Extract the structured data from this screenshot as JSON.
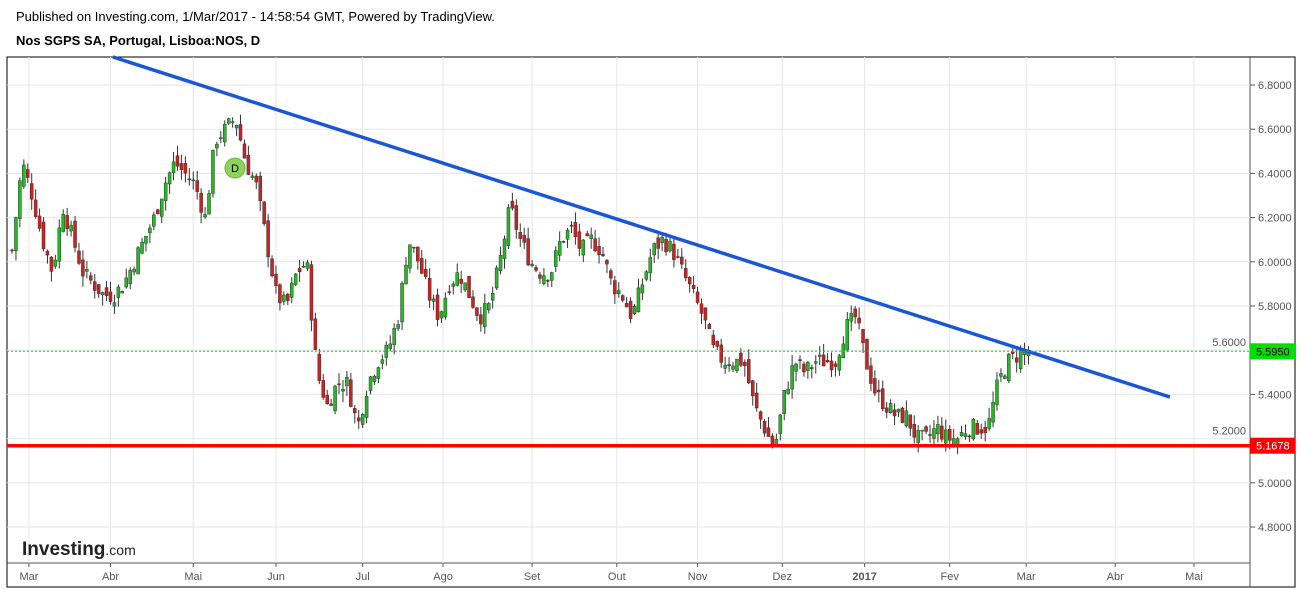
{
  "header": {
    "published": "Published on Investing.com, 1/Mar/2017 - 14:58:54 GMT, Powered by TradingView.",
    "title": "Nos SGPS SA, Portugal, Lisboa:NOS, D"
  },
  "logo": {
    "text_main": "Investing",
    "text_suffix": ".com"
  },
  "chart_data": {
    "type": "candlestick",
    "title": "Nos SGPS SA, Portugal, Lisboa:NOS, D",
    "ylim": [
      4.6,
      6.92
    ],
    "xlim": [
      -1,
      314
    ],
    "yticks": [
      "4.8000",
      "5.0000",
      "5.2000",
      "5.4000",
      "5.6000",
      "5.8000",
      "6.0000",
      "6.2000",
      "6.4000",
      "6.6000",
      "6.8000"
    ],
    "xticks": [
      {
        "label": "Mar",
        "i": 4.3
      },
      {
        "label": "Abr",
        "i": 25
      },
      {
        "label": "Mai",
        "i": 46
      },
      {
        "label": "Jun",
        "i": 67
      },
      {
        "label": "Jul",
        "i": 89
      },
      {
        "label": "Ago",
        "i": 109.4
      },
      {
        "label": "Set",
        "i": 132
      },
      {
        "label": "Out",
        "i": 153.5
      },
      {
        "label": "Nov",
        "i": 174
      },
      {
        "label": "Dez",
        "i": 195.5
      },
      {
        "label": "2017",
        "i": 216.4,
        "bold": true
      },
      {
        "label": "Fev",
        "i": 238
      },
      {
        "label": "Mar",
        "i": 257.4
      },
      {
        "label": "Abr",
        "i": 280
      },
      {
        "label": "Mai",
        "i": 300
      }
    ],
    "close_path": [
      6.05,
      6.45,
      6.3,
      6.1,
      5.95,
      6.25,
      6.1,
      5.95,
      5.9,
      5.85,
      5.85,
      5.9,
      6.0,
      6.1,
      6.2,
      6.35,
      6.45,
      6.4,
      6.35,
      6.2,
      6.55,
      6.6,
      6.65,
      6.45,
      6.35,
      6.1,
      5.85,
      5.8,
      5.95,
      6.0,
      5.5,
      5.35,
      5.45,
      5.45,
      5.25,
      5.45,
      5.55,
      5.6,
      5.75,
      6.1,
      6.0,
      5.85,
      5.75,
      5.9,
      5.95,
      5.85,
      5.75,
      5.8,
      6.0,
      6.25,
      6.1,
      6.0,
      5.95,
      5.95,
      6.1,
      6.15,
      6.05,
      6.1,
      6.05,
      5.9,
      5.85,
      5.75,
      5.9,
      6.05,
      6.1,
      6.05,
      5.95,
      5.85,
      5.75,
      5.6,
      5.55,
      5.55,
      5.55,
      5.35,
      5.25,
      5.15,
      5.4,
      5.55,
      5.5,
      5.55,
      5.55,
      5.55,
      5.7,
      5.75,
      5.55,
      5.4,
      5.35,
      5.3,
      5.3,
      5.2,
      5.2,
      5.25,
      5.2,
      5.2,
      5.25,
      5.25,
      5.25,
      5.45,
      5.55,
      5.58,
      5.6
    ],
    "last_index": 258,
    "trendline": {
      "from": {
        "i": 25.6,
        "price": 6.927
      },
      "to": {
        "i": 293.9,
        "price": 5.388
      },
      "color": "#1a56d6"
    },
    "support": {
      "price": 5.1678,
      "label": "5.1678",
      "color": "#ff0000"
    },
    "last_price": {
      "price": 5.595,
      "label": "5.5950",
      "color": "#00dd00"
    },
    "dividend_marker": {
      "label": "D",
      "i": 56.6,
      "price": 6.424
    },
    "colors": {
      "up": "#22bb22",
      "down": "#cc2222"
    }
  }
}
